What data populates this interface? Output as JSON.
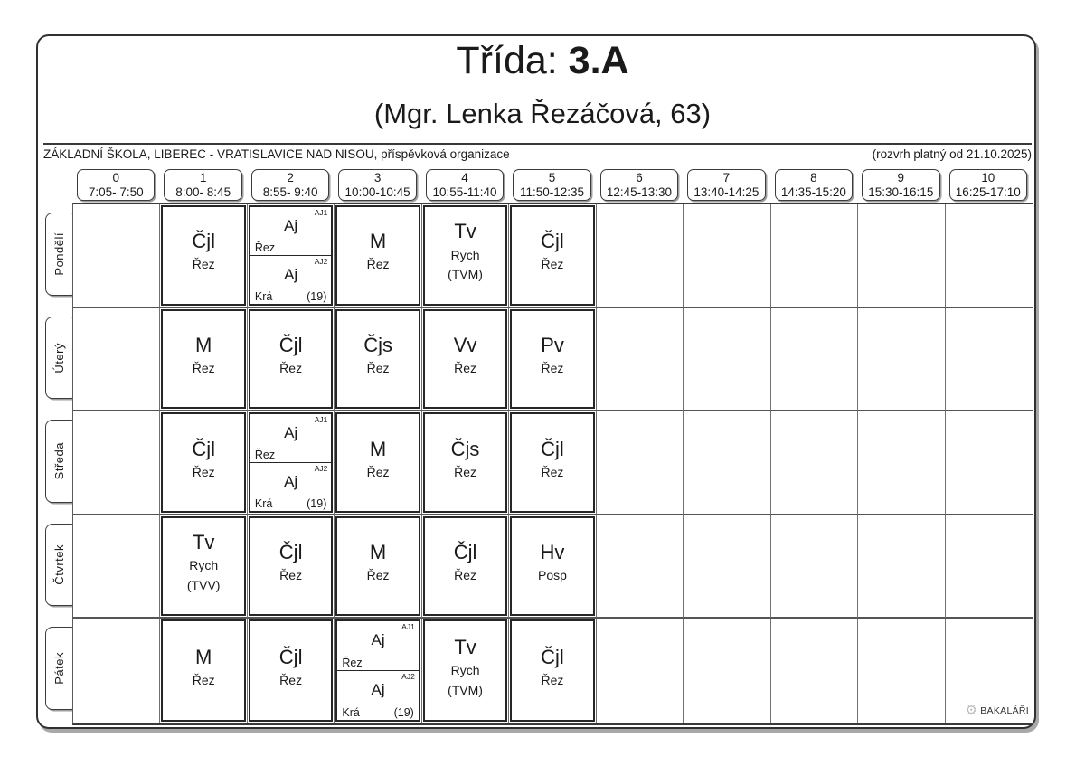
{
  "header": {
    "title_label": "Třída: ",
    "title_value": "3.A",
    "subtitle": "(Mgr. Lenka Řezáčová, 63)",
    "school_name": "ZÁKLADNÍ ŠKOLA, LIBEREC - VRATISLAVICE NAD NISOU, příspěvková organizace",
    "validity_note": "(rozvrh platný od 21.10.2025)"
  },
  "periods": [
    {
      "num": "0",
      "time": "7:05- 7:50"
    },
    {
      "num": "1",
      "time": "8:00- 8:45"
    },
    {
      "num": "2",
      "time": "8:55- 9:40"
    },
    {
      "num": "3",
      "time": "10:00-10:45"
    },
    {
      "num": "4",
      "time": "10:55-11:40"
    },
    {
      "num": "5",
      "time": "11:50-12:35"
    },
    {
      "num": "6",
      "time": "12:45-13:30"
    },
    {
      "num": "7",
      "time": "13:40-14:25"
    },
    {
      "num": "8",
      "time": "14:35-15:20"
    },
    {
      "num": "9",
      "time": "15:30-16:15"
    },
    {
      "num": "10",
      "time": "16:25-17:10"
    }
  ],
  "days": [
    {
      "name": "Pondělí",
      "lessons": [
        null,
        {
          "subject": "Čjl",
          "teacher": "Řez"
        },
        {
          "split": [
            {
              "group": "AJ1",
              "subject": "Aj",
              "teacher": "Řez"
            },
            {
              "group": "AJ2",
              "subject": "Aj",
              "teacher": "Krá",
              "room": "(19)"
            }
          ]
        },
        {
          "subject": "M",
          "teacher": "Řez"
        },
        {
          "subject": "Tv",
          "teacher": "Rych",
          "room": "(TVM)"
        },
        {
          "subject": "Čjl",
          "teacher": "Řez"
        },
        null,
        null,
        null,
        null,
        null
      ]
    },
    {
      "name": "Úterý",
      "lessons": [
        null,
        {
          "subject": "M",
          "teacher": "Řez"
        },
        {
          "subject": "Čjl",
          "teacher": "Řez"
        },
        {
          "subject": "Čjs",
          "teacher": "Řez"
        },
        {
          "subject": "Vv",
          "teacher": "Řez"
        },
        {
          "subject": "Pv",
          "teacher": "Řez"
        },
        null,
        null,
        null,
        null,
        null
      ]
    },
    {
      "name": "Středa",
      "lessons": [
        null,
        {
          "subject": "Čjl",
          "teacher": "Řez"
        },
        {
          "split": [
            {
              "group": "AJ1",
              "subject": "Aj",
              "teacher": "Řez"
            },
            {
              "group": "AJ2",
              "subject": "Aj",
              "teacher": "Krá",
              "room": "(19)"
            }
          ]
        },
        {
          "subject": "M",
          "teacher": "Řez"
        },
        {
          "subject": "Čjs",
          "teacher": "Řez"
        },
        {
          "subject": "Čjl",
          "teacher": "Řez"
        },
        null,
        null,
        null,
        null,
        null
      ]
    },
    {
      "name": "Čtvrtek",
      "lessons": [
        null,
        {
          "subject": "Tv",
          "teacher": "Rych",
          "room": "(TVV)"
        },
        {
          "subject": "Čjl",
          "teacher": "Řez"
        },
        {
          "subject": "M",
          "teacher": "Řez"
        },
        {
          "subject": "Čjl",
          "teacher": "Řez"
        },
        {
          "subject": "Hv",
          "teacher": "Posp"
        },
        null,
        null,
        null,
        null,
        null
      ]
    },
    {
      "name": "Pátek",
      "lessons": [
        null,
        {
          "subject": "M",
          "teacher": "Řez"
        },
        {
          "subject": "Čjl",
          "teacher": "Řez"
        },
        {
          "split": [
            {
              "group": "AJ1",
              "subject": "Aj",
              "teacher": "Řez"
            },
            {
              "group": "AJ2",
              "subject": "Aj",
              "teacher": "Krá",
              "room": "(19)"
            }
          ]
        },
        {
          "subject": "Tv",
          "teacher": "Rych",
          "room": "(TVM)"
        },
        {
          "subject": "Čjl",
          "teacher": "Řez"
        },
        null,
        null,
        null,
        null,
        null
      ]
    }
  ],
  "footer": {
    "brand": "BAKALÁŘI"
  },
  "colors": {
    "text": "#1a1a1a",
    "logo_gray": "#bdbdbd"
  }
}
